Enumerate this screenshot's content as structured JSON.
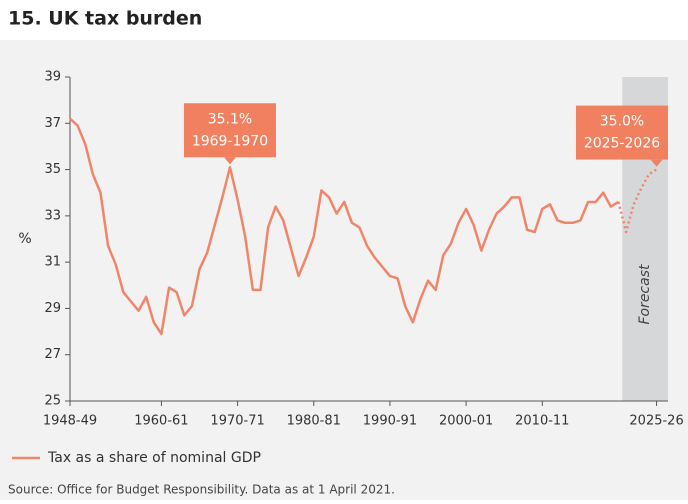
{
  "chart_data": {
    "type": "line",
    "title": "15. UK tax burden",
    "y_label": "%",
    "x": [
      1948,
      1949,
      1950,
      1951,
      1952,
      1953,
      1954,
      1955,
      1956,
      1957,
      1958,
      1959,
      1960,
      1961,
      1962,
      1963,
      1964,
      1965,
      1966,
      1967,
      1968,
      1969,
      1970,
      1971,
      1972,
      1973,
      1974,
      1975,
      1976,
      1977,
      1978,
      1979,
      1980,
      1981,
      1982,
      1983,
      1984,
      1985,
      1986,
      1987,
      1988,
      1989,
      1990,
      1991,
      1992,
      1993,
      1994,
      1995,
      1996,
      1997,
      1998,
      1999,
      2000,
      2001,
      2002,
      2003,
      2004,
      2005,
      2006,
      2007,
      2008,
      2009,
      2010,
      2011,
      2012,
      2013,
      2014,
      2015,
      2016,
      2017,
      2018,
      2019,
      2020,
      2021,
      2022,
      2023,
      2024,
      2025
    ],
    "series": [
      {
        "name": "Tax as a share of nominal GDP",
        "color": "#f0856a",
        "values": [
          37.2,
          36.9,
          36.1,
          34.8,
          34.0,
          31.7,
          30.9,
          29.7,
          29.3,
          28.9,
          29.5,
          28.4,
          27.9,
          29.9,
          29.7,
          28.7,
          29.1,
          30.7,
          31.4,
          32.6,
          33.8,
          35.1,
          33.7,
          32.1,
          29.8,
          29.8,
          32.5,
          33.4,
          32.8,
          31.6,
          30.4,
          31.2,
          32.1,
          34.1,
          33.8,
          33.1,
          33.6,
          32.7,
          32.5,
          31.7,
          31.2,
          30.8,
          30.4,
          30.3,
          29.1,
          28.4,
          29.4,
          30.2,
          29.8,
          31.3,
          31.8,
          32.7,
          33.3,
          32.6,
          31.5,
          32.4,
          33.1,
          33.4,
          33.8,
          33.8,
          32.4,
          32.3,
          33.3,
          33.5,
          32.8,
          32.7,
          32.7,
          32.8,
          33.6,
          33.6,
          34.0,
          33.4,
          33.6,
          32.3,
          33.5,
          34.2,
          34.8,
          35.0
        ]
      }
    ],
    "dotted_from": 2020,
    "forecast_region": [
      2020.5,
      2026.5
    ],
    "forecast_label": "Forecast",
    "xlim": [
      1948,
      2026.5
    ],
    "xticks": [
      {
        "value": 1948,
        "label": "1948-49"
      },
      {
        "value": 1960,
        "label": "1960-61"
      },
      {
        "value": 1970,
        "label": "1970-71"
      },
      {
        "value": 1980,
        "label": "1980-81"
      },
      {
        "value": 1990,
        "label": "1990-91"
      },
      {
        "value": 2000,
        "label": "2000-01"
      },
      {
        "value": 2010,
        "label": "2010-11"
      },
      {
        "value": 2025,
        "label": "2025-26"
      }
    ],
    "ylim": [
      25,
      39
    ],
    "yticks": [
      25,
      27,
      29,
      31,
      33,
      35,
      37,
      39
    ],
    "annotations": [
      {
        "x": 1969,
        "y": 35.1,
        "lines": [
          "35.1%",
          "1969-1970"
        ],
        "color": "#f0805f"
      },
      {
        "x": 2025,
        "y": 35.0,
        "lines": [
          "35.0%",
          "2025-2026"
        ],
        "color": "#f0805f"
      }
    ],
    "source": "Source: Office for Budget Responsibility. Data as at 1 April 2021."
  }
}
